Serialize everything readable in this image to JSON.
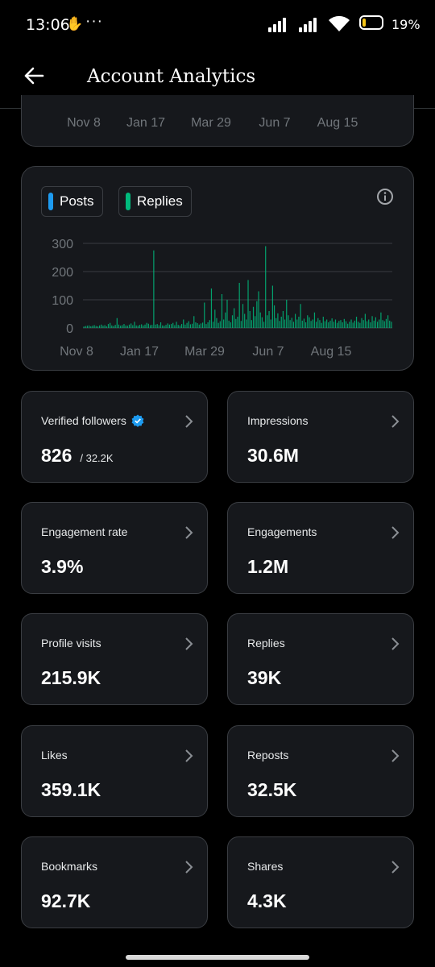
{
  "status_bar": {
    "time": "13:06",
    "battery_text": "19%",
    "battery_level": 0.19,
    "battery_color": "#f5c518"
  },
  "header": {
    "title": "Account Analytics",
    "back_icon": "arrow-left-icon"
  },
  "range_selector": {
    "dates": [
      "Nov 8",
      "Jan 17",
      "Mar 29",
      "Jun 7",
      "Aug 15"
    ]
  },
  "chart_legend": {
    "posts_label": "Posts",
    "posts_color": "#1d9bf0",
    "replies_label": "Replies",
    "replies_color": "#00ba7c",
    "info_icon": "info-icon"
  },
  "chart_data": {
    "type": "bar",
    "x_tick_labels": [
      "Nov 8",
      "Jan 17",
      "Mar 29",
      "Jun 7",
      "Aug 15"
    ],
    "y_tick_labels": [
      "0",
      "100",
      "200",
      "300"
    ],
    "ylim": [
      0,
      300
    ],
    "grid": true,
    "series": [
      {
        "name": "Replies",
        "color": "#00ba7c",
        "values": [
          5,
          7,
          8,
          9,
          6,
          8,
          10,
          7,
          6,
          9,
          12,
          8,
          10,
          6,
          14,
          18,
          9,
          7,
          11,
          35,
          12,
          8,
          10,
          14,
          9,
          8,
          12,
          16,
          10,
          22,
          9,
          8,
          11,
          13,
          9,
          12,
          18,
          15,
          10,
          11,
          275,
          12,
          14,
          10,
          20,
          9,
          8,
          11,
          16,
          12,
          14,
          18,
          10,
          22,
          11,
          9,
          14,
          30,
          12,
          18,
          24,
          13,
          15,
          42,
          20,
          17,
          12,
          16,
          19,
          90,
          14,
          20,
          28,
          140,
          22,
          65,
          35,
          18,
          24,
          120,
          30,
          55,
          100,
          26,
          20,
          45,
          70,
          32,
          40,
          160,
          25,
          85,
          50,
          30,
          170,
          60,
          28,
          75,
          42,
          95,
          130,
          55,
          38,
          22,
          290,
          45,
          60,
          30,
          150,
          80,
          35,
          52,
          25,
          40,
          60,
          30,
          100,
          45,
          28,
          36,
          22,
          50,
          30,
          40,
          85,
          26,
          33,
          20,
          45,
          38,
          25,
          30,
          55,
          22,
          35,
          28,
          18,
          40,
          24,
          30,
          20,
          26,
          34,
          22,
          30,
          18,
          25,
          28,
          20,
          32,
          24,
          15,
          22,
          30,
          19,
          26,
          40,
          22,
          18,
          35,
          28,
          50,
          24,
          30,
          20,
          42,
          26,
          38,
          22,
          30,
          55,
          28,
          24,
          32,
          45,
          26,
          22
        ]
      }
    ]
  },
  "metrics": [
    {
      "label": "Verified followers",
      "value": "826",
      "sub": "/ 32.2K",
      "verified_icon": "verified-badge-icon"
    },
    {
      "label": "Impressions",
      "value": "30.6M"
    },
    {
      "label": "Engagement rate",
      "value": "3.9%"
    },
    {
      "label": "Engagements",
      "value": "1.2M"
    },
    {
      "label": "Profile visits",
      "value": "215.9K"
    },
    {
      "label": "Replies",
      "value": "39K"
    },
    {
      "label": "Likes",
      "value": "359.1K"
    },
    {
      "label": "Reposts",
      "value": "32.5K"
    },
    {
      "label": "Bookmarks",
      "value": "92.7K"
    },
    {
      "label": "Shares",
      "value": "4.3K"
    }
  ]
}
